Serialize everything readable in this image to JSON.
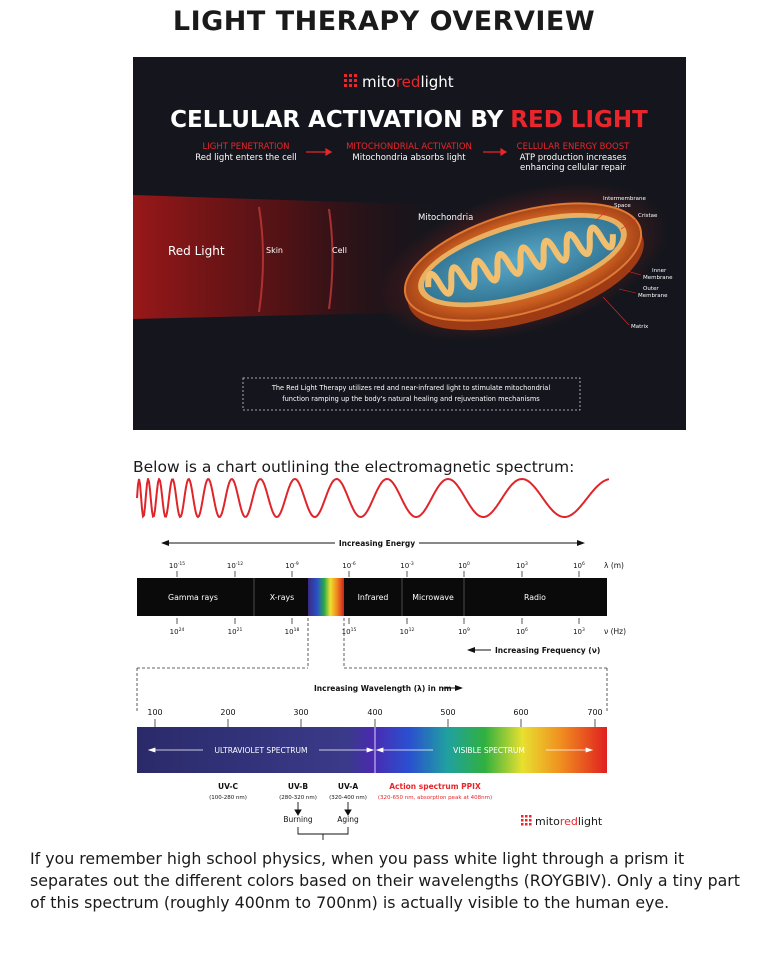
{
  "title": "LIGHT THERAPY OVERVIEW",
  "banner": {
    "brand": {
      "prefix": "mito",
      "mid": "red",
      "suffix": "light"
    },
    "headline_white": "CELLULAR ACTIVATION BY",
    "headline_red": "RED LIGHT",
    "steps": [
      {
        "title": "LIGHT PENETRATION",
        "desc": "Red light enters the cell"
      },
      {
        "title": "MITOCHONDRIAL ACTIVATION",
        "desc": "Mitochondria absorbs light"
      },
      {
        "title": "CELLULAR ENERGY BOOST",
        "desc": "ATP production increases",
        "desc2": "enhancing cellular repair"
      }
    ],
    "labels": {
      "red_light": "Red Light",
      "skin": "Skin",
      "cell": "Cell",
      "mitochondria": "Mitochondria",
      "intermembrane_1": "Intermembrane",
      "intermembrane_2": "Space",
      "cristae": "Cristae",
      "inner_1": "Inner",
      "inner_2": "Membrane",
      "outer_1": "Outer",
      "outer_2": "Membrane",
      "matrix": "Matrix"
    },
    "note_line1": "The Red Light Therapy utilizes red and near-infrared light to stimulate mitochondrial",
    "note_line2": "function ramping up the body's natural healing and rejuvenation mechanisms"
  },
  "intro": "Below is a chart outlining the electromagnetic spectrum:",
  "spectrum": {
    "increasing_energy": "Increasing Energy",
    "lambda_unit": "λ (m)",
    "freq_unit": "ν (Hz)",
    "increasing_frequency": "Increasing Frequency (ν)",
    "increasing_wavelength": "Increasing Wavelength (λ) in nm",
    "wavelength_ticks": [
      {
        "b": "10",
        "e": "-15"
      },
      {
        "b": "10",
        "e": "-12"
      },
      {
        "b": "10",
        "e": "-9"
      },
      {
        "b": "10",
        "e": "-6"
      },
      {
        "b": "10",
        "e": "-3"
      },
      {
        "b": "10",
        "e": "0"
      },
      {
        "b": "10",
        "e": "3"
      },
      {
        "b": "10",
        "e": "6"
      }
    ],
    "frequency_ticks": [
      {
        "b": "10",
        "e": "24"
      },
      {
        "b": "10",
        "e": "21"
      },
      {
        "b": "10",
        "e": "18"
      },
      {
        "b": "10",
        "e": "15"
      },
      {
        "b": "10",
        "e": "12"
      },
      {
        "b": "10",
        "e": "9"
      },
      {
        "b": "10",
        "e": "6"
      },
      {
        "b": "10",
        "e": "3"
      }
    ],
    "bands": [
      "Gamma rays",
      "X-rays",
      "Infrared",
      "Microwave",
      "Radio"
    ],
    "nm_ticks": [
      "100",
      "200",
      "300",
      "400",
      "500",
      "600",
      "700"
    ],
    "uv_spectrum": "ULTRAVIOLET SPECTRUM",
    "visible_spectrum": "VISIBLE SPECTRUM",
    "uvc": {
      "name": "UV-C",
      "range": "(100-280 nm)"
    },
    "uvb": {
      "name": "UV-B",
      "range": "(280-320 nm)",
      "effect": "Burning"
    },
    "uva": {
      "name": "UV-A",
      "range": "(320-400 nm)",
      "effect": "Aging"
    },
    "action": {
      "name": "Action spectrum PPIX",
      "range": "(320-650 nm, absorption peak at 408nm)"
    },
    "brand": {
      "prefix": "mito",
      "mid": "red",
      "suffix": "light"
    }
  },
  "paragraph": "If you remember high school physics, when you pass white light through a prism it separates out the different colors based on their wavelengths (ROYGBIV). Only a tiny part of this spectrum (roughly 400nm to 700nm) is actually visible to the human eye.",
  "colors": {
    "brand_red": "#e8262b",
    "banner_bg": "#15161d",
    "wave_red": "#e0252a"
  }
}
